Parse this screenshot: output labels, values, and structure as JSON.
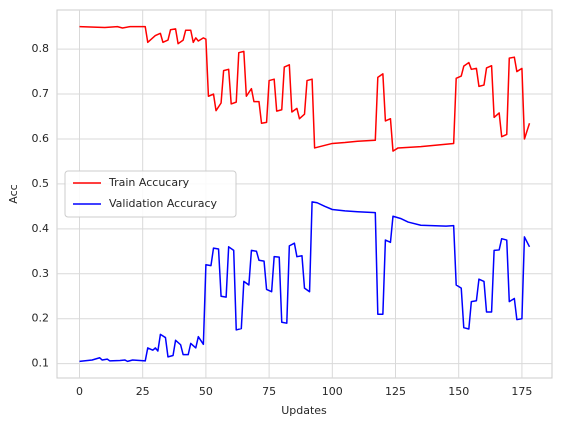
{
  "chart_data": {
    "type": "line",
    "xlabel": "Updates",
    "ylabel": "Acc",
    "xlim": [
      -8.9,
      186.9
    ],
    "ylim": [
      0.068,
      0.887
    ],
    "xticks": [
      0,
      25,
      50,
      75,
      100,
      125,
      150,
      175
    ],
    "yticks": [
      0.1,
      0.2,
      0.3,
      0.4,
      0.5,
      0.6,
      0.7,
      0.8
    ],
    "grid": true,
    "legend": "center left",
    "series": [
      {
        "name": "Train Accucary",
        "color": "#ff0000",
        "x": [
          0,
          10,
          15,
          17,
          20,
          26,
          27,
          30,
          32,
          33,
          35,
          36,
          38,
          39,
          41,
          42,
          44,
          45,
          46,
          47,
          49,
          50,
          51,
          53,
          54,
          56,
          57,
          59,
          60,
          62,
          63,
          65,
          66,
          68,
          69,
          71,
          72,
          74,
          75,
          77,
          78,
          80,
          81,
          83,
          84,
          86,
          87,
          89,
          90,
          92,
          93,
          100,
          105,
          110,
          117,
          118,
          120,
          121,
          123,
          124,
          126,
          135,
          148,
          149,
          151,
          152,
          154,
          155,
          157,
          158,
          160,
          161,
          163,
          164,
          166,
          167,
          169,
          170,
          172,
          173,
          175,
          176,
          178
        ],
        "values": [
          0.85,
          0.848,
          0.85,
          0.847,
          0.85,
          0.85,
          0.815,
          0.83,
          0.835,
          0.815,
          0.82,
          0.843,
          0.845,
          0.812,
          0.82,
          0.842,
          0.842,
          0.815,
          0.825,
          0.818,
          0.825,
          0.822,
          0.695,
          0.7,
          0.663,
          0.68,
          0.752,
          0.755,
          0.678,
          0.682,
          0.792,
          0.795,
          0.695,
          0.712,
          0.683,
          0.683,
          0.635,
          0.637,
          0.73,
          0.733,
          0.662,
          0.665,
          0.76,
          0.765,
          0.66,
          0.668,
          0.645,
          0.655,
          0.73,
          0.733,
          0.58,
          0.59,
          0.592,
          0.595,
          0.597,
          0.737,
          0.745,
          0.64,
          0.645,
          0.573,
          0.58,
          0.583,
          0.59,
          0.735,
          0.74,
          0.762,
          0.77,
          0.755,
          0.757,
          0.717,
          0.72,
          0.758,
          0.763,
          0.648,
          0.658,
          0.605,
          0.61,
          0.78,
          0.782,
          0.75,
          0.757,
          0.6,
          0.635
        ]
      },
      {
        "name": "Validation Accuracy",
        "color": "#0000ff",
        "x": [
          0,
          5,
          8,
          9,
          11,
          12,
          16,
          18,
          19,
          21,
          26,
          27,
          29,
          30,
          31,
          32,
          34,
          35,
          37,
          38,
          40,
          41,
          43,
          44,
          46,
          47,
          49,
          50,
          52,
          53,
          55,
          56,
          58,
          59,
          61,
          62,
          64,
          65,
          67,
          68,
          70,
          71,
          73,
          74,
          76,
          77,
          79,
          80,
          82,
          83,
          85,
          86,
          88,
          89,
          91,
          92,
          94,
          97,
          100,
          105,
          110,
          117,
          118,
          120,
          121,
          123,
          124,
          127,
          130,
          135,
          145,
          148,
          149,
          151,
          152,
          154,
          155,
          157,
          158,
          160,
          161,
          163,
          164,
          166,
          167,
          169,
          170,
          172,
          173,
          175,
          176,
          178
        ],
        "values": [
          0.105,
          0.108,
          0.113,
          0.108,
          0.11,
          0.106,
          0.107,
          0.108,
          0.105,
          0.108,
          0.106,
          0.135,
          0.13,
          0.135,
          0.128,
          0.165,
          0.158,
          0.115,
          0.118,
          0.152,
          0.142,
          0.12,
          0.12,
          0.145,
          0.135,
          0.16,
          0.143,
          0.32,
          0.318,
          0.357,
          0.355,
          0.25,
          0.248,
          0.36,
          0.352,
          0.175,
          0.178,
          0.283,
          0.275,
          0.352,
          0.35,
          0.33,
          0.328,
          0.265,
          0.26,
          0.338,
          0.337,
          0.192,
          0.19,
          0.362,
          0.368,
          0.338,
          0.34,
          0.268,
          0.26,
          0.46,
          0.458,
          0.45,
          0.443,
          0.44,
          0.438,
          0.436,
          0.21,
          0.21,
          0.375,
          0.37,
          0.428,
          0.423,
          0.415,
          0.408,
          0.406,
          0.407,
          0.275,
          0.268,
          0.18,
          0.177,
          0.238,
          0.24,
          0.288,
          0.283,
          0.215,
          0.215,
          0.352,
          0.353,
          0.378,
          0.375,
          0.238,
          0.245,
          0.198,
          0.2,
          0.382,
          0.36
        ]
      }
    ]
  }
}
